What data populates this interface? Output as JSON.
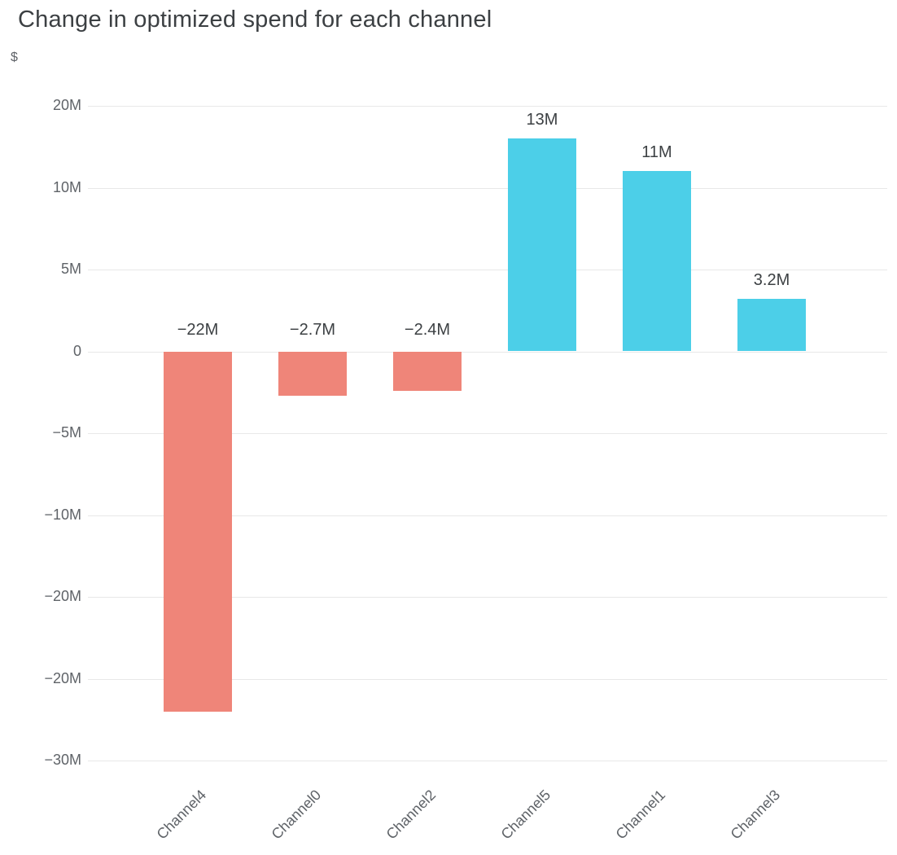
{
  "title": "Change in optimized spend for each channel",
  "y_axis_unit": "$",
  "chart_data": {
    "type": "bar",
    "title": "Change in optimized spend for each channel",
    "xlabel": "",
    "ylabel": "$",
    "categories": [
      "Channel4",
      "Channel0",
      "Channel2",
      "Channel5",
      "Channel1",
      "Channel3"
    ],
    "values": [
      -22,
      -2.7,
      -2.4,
      13,
      11,
      3.2
    ],
    "value_unit": "M",
    "bar_labels": [
      "−22M",
      "−2.7M",
      "−2.4M",
      "13M",
      "11M",
      "3.2M"
    ],
    "y_ticks": [
      "20M",
      "10M",
      "5M",
      "0",
      "−5M",
      "−10M",
      "−20M",
      "−20M",
      "−30M"
    ],
    "colors": {
      "negative_bar": "#EF8579",
      "positive_bar": "#4CCFE8",
      "grid": "#e8e8e8",
      "title_text": "#3c4043",
      "axis_text": "#5f6368"
    },
    "grid": true,
    "legend": false
  }
}
